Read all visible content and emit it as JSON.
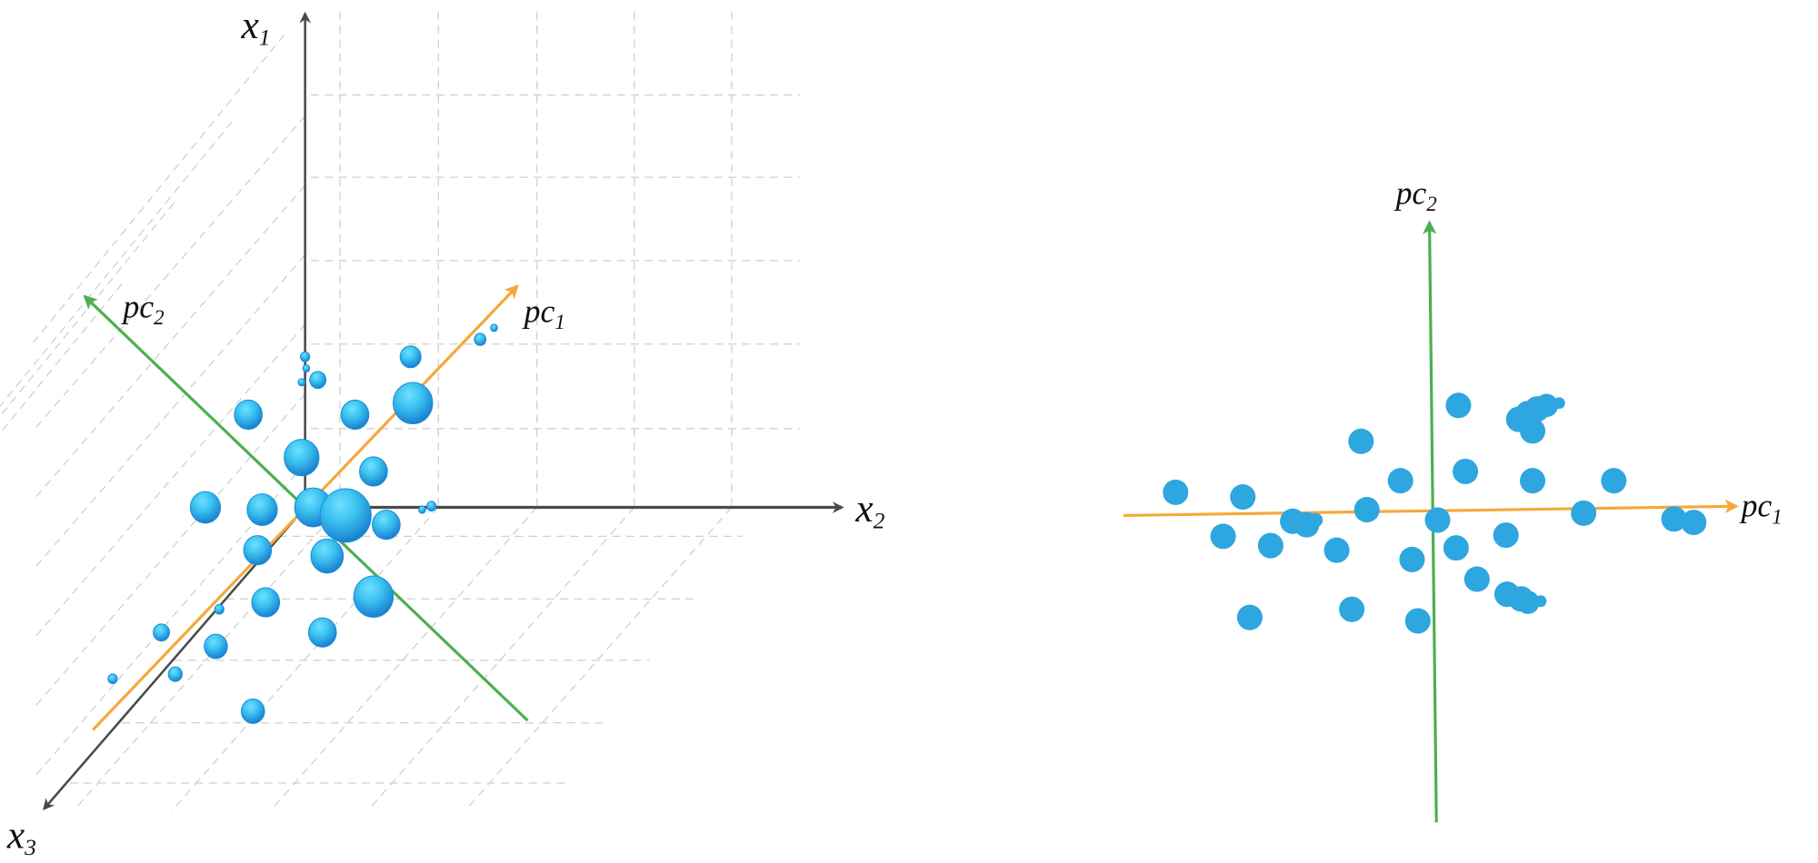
{
  "colors": {
    "axis": "#4a4a4a",
    "pc1": "#f5a83a",
    "pc2": "#4caf50",
    "point": "#2ea6e0",
    "sphere_light": "#4fd0f5",
    "sphere_dark": "#1a7fd0"
  },
  "left_panel": {
    "axes": [
      {
        "id": "x1",
        "main": "x",
        "sub": "1"
      },
      {
        "id": "x2",
        "main": "x",
        "sub": "2"
      },
      {
        "id": "x3",
        "main": "x",
        "sub": "3"
      }
    ],
    "pc1": {
      "main": "pc",
      "sub": "1"
    },
    "pc2": {
      "main": "pc",
      "sub": "2"
    }
  },
  "right_panel": {
    "pc1": {
      "main": "pc",
      "sub": "1"
    },
    "pc2": {
      "main": "pc",
      "sub": "2"
    }
  }
}
